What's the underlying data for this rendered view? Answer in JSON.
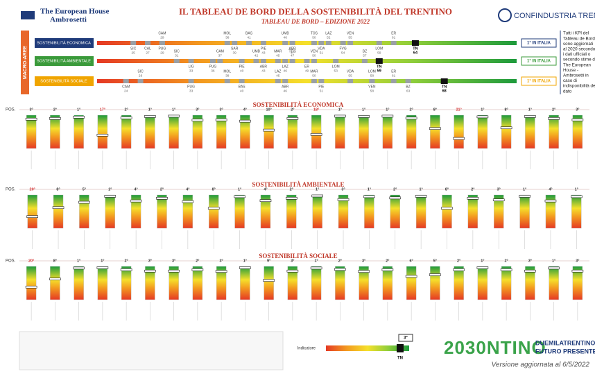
{
  "header": {
    "logo_left": "The European House",
    "logo_left_sub": "Ambrosetti",
    "title": "IL TABLEAU DE BORD DELLA SOSTENIBILITÀ DEL TRENTINO",
    "subtitle": "TABLEAU DE BORD – EDIZIONE 2022",
    "logo_right": "CONFINDUSTRIA TRENTO"
  },
  "side_label": "MACRO-AREE",
  "note": [
    "Tutti i KPI del",
    "Tableau de Bord",
    "sono aggiornati",
    "al 2020 secondo",
    "i dati ufficiali o",
    "secondo stime di",
    "The European",
    "House -",
    "Ambrosetti in",
    "caso di",
    "indisponibilità del",
    "dato"
  ],
  "macro": {
    "xlim": [
      20,
      78
    ],
    "areas": [
      {
        "label": "SOSTENIBILITÀ ECONOMICA",
        "color": "#1f3b7a",
        "rank": "1° IN ITALIA",
        "tn": {
          "code": "TN",
          "value": 64
        },
        "top": [
          {
            "code": "CAM",
            "value": 29
          },
          {
            "code": "MOL",
            "value": 38
          },
          {
            "code": "BAS",
            "value": 41
          },
          {
            "code": "UMB",
            "value": 46
          },
          {
            "code": "TOS",
            "value": 50
          },
          {
            "code": "LAZ",
            "value": 52
          },
          {
            "code": "VEN",
            "value": 55
          },
          {
            "code": "ER",
            "value": 61
          }
        ],
        "bottom": [
          {
            "code": "SIC",
            "value": 25
          },
          {
            "code": "CAL",
            "value": 27
          },
          {
            "code": "PUG",
            "value": 29
          },
          {
            "code": "SAR",
            "value": 39
          },
          {
            "code": "PIE",
            "value": 43
          },
          {
            "code": "ABR",
            "value": 47
          },
          {
            "code": "VDA",
            "value": 51
          },
          {
            "code": "FVG",
            "value": 54
          },
          {
            "code": "LOM",
            "value": 59
          }
        ]
      },
      {
        "label": "SOSTENIBILITÀ AMBIENTALE",
        "color": "#3a9a3a",
        "rank": "1° IN ITALIA",
        "tn": {
          "code": "TN",
          "value": 59
        },
        "top": [
          {
            "code": "SIC",
            "value": 31
          },
          {
            "code": "CAM",
            "value": 37
          },
          {
            "code": "UMB",
            "value": 42
          },
          {
            "code": "MAR",
            "value": 45
          },
          {
            "code": "TOS",
            "value": 47
          },
          {
            "code": "VEN",
            "value": 50
          },
          {
            "code": "BZ",
            "value": 57
          }
        ],
        "bottom": [
          {
            "code": "LIG",
            "value": 33
          },
          {
            "code": "PUG",
            "value": 36
          },
          {
            "code": "PIE",
            "value": 40
          },
          {
            "code": "ABR",
            "value": 43
          },
          {
            "code": "LAZ",
            "value": 46
          },
          {
            "code": "ER",
            "value": 49
          },
          {
            "code": "LOM",
            "value": 53
          }
        ]
      },
      {
        "label": "SOSTENIBILITÀ SOCIALE",
        "color": "#f0a500",
        "rank": "1° IN ITALIA",
        "tn": {
          "code": "TN",
          "value": 68
        },
        "top": [
          {
            "code": "SIC",
            "value": 26
          },
          {
            "code": "MOL",
            "value": 38
          },
          {
            "code": "LAZ",
            "value": 45
          },
          {
            "code": "MAR",
            "value": 50
          },
          {
            "code": "VDA",
            "value": 55
          },
          {
            "code": "LOM",
            "value": 58
          },
          {
            "code": "ER",
            "value": 61
          }
        ],
        "bottom": [
          {
            "code": "CAM",
            "value": 24
          },
          {
            "code": "PUG",
            "value": 33
          },
          {
            "code": "BAS",
            "value": 40
          },
          {
            "code": "ABR",
            "value": 46
          },
          {
            "code": "PIE",
            "value": 51
          },
          {
            "code": "VEN",
            "value": 58
          },
          {
            "code": "BZ",
            "value": 63
          }
        ]
      }
    ]
  },
  "sections": [
    {
      "title": "SOSTENIBILITÀ ECONOMICA",
      "pos_label": "POS.",
      "scale": [
        0,
        100
      ],
      "ranks": [
        "3°",
        "2°",
        "1°",
        "17°",
        "2°",
        "1°",
        "1°",
        "3°",
        "3°",
        "4°",
        "10°",
        "2°",
        "18°",
        "1°",
        "1°",
        "1°",
        "2°",
        "8°",
        "21°",
        "1°",
        "8°",
        "1°",
        "2°",
        "3°"
      ],
      "markers": [
        88,
        90,
        94,
        40,
        92,
        96,
        97,
        85,
        86,
        82,
        55,
        90,
        42,
        97,
        96,
        97,
        91,
        60,
        30,
        95,
        62,
        96,
        90,
        86
      ]
    },
    {
      "title": "SOSTENIBILITÀ AMBIENTALE",
      "pos_label": "POS.",
      "scale": [
        0,
        100
      ],
      "ranks": [
        "20°",
        "8°",
        "5°",
        "1°",
        "4°",
        "2°",
        "4°",
        "8°",
        "1°",
        "4°",
        "2°",
        "1°",
        "3°",
        "1°",
        "2°",
        "1°",
        "8°",
        "2°",
        "3°",
        "1°",
        "4°",
        "1°"
      ],
      "markers": [
        35,
        62,
        78,
        96,
        82,
        90,
        80,
        60,
        95,
        83,
        90,
        97,
        86,
        95,
        91,
        96,
        60,
        90,
        85,
        96,
        82,
        95
      ]
    },
    {
      "title": "SOSTENIBILITÀ SOCIALE",
      "pos_label": "POS.",
      "scale": [
        0,
        100
      ],
      "ranks": [
        "20°",
        "8°",
        "1°",
        "1°",
        "2°",
        "3°",
        "3°",
        "2°",
        "3°",
        "1°",
        "9°",
        "3°",
        "1°",
        "2°",
        "3°",
        "2°",
        "6°",
        "5°",
        "2°",
        "1°",
        "2°",
        "3°",
        "1°",
        "3°"
      ],
      "markers": [
        38,
        62,
        95,
        96,
        90,
        86,
        86,
        90,
        85,
        96,
        58,
        86,
        95,
        91,
        85,
        90,
        70,
        75,
        90,
        96,
        90,
        86,
        95,
        86
      ]
    }
  ],
  "legend": {
    "indicator": "Indicatore",
    "tn": "TN",
    "rank": "3°"
  },
  "footer": {
    "logo": "2030NTINO",
    "tagline1": "DUEMILATRENTINO",
    "tagline2": "FUTURO PRESENTE",
    "version": "Versione aggiornata al 6/5/2022"
  }
}
